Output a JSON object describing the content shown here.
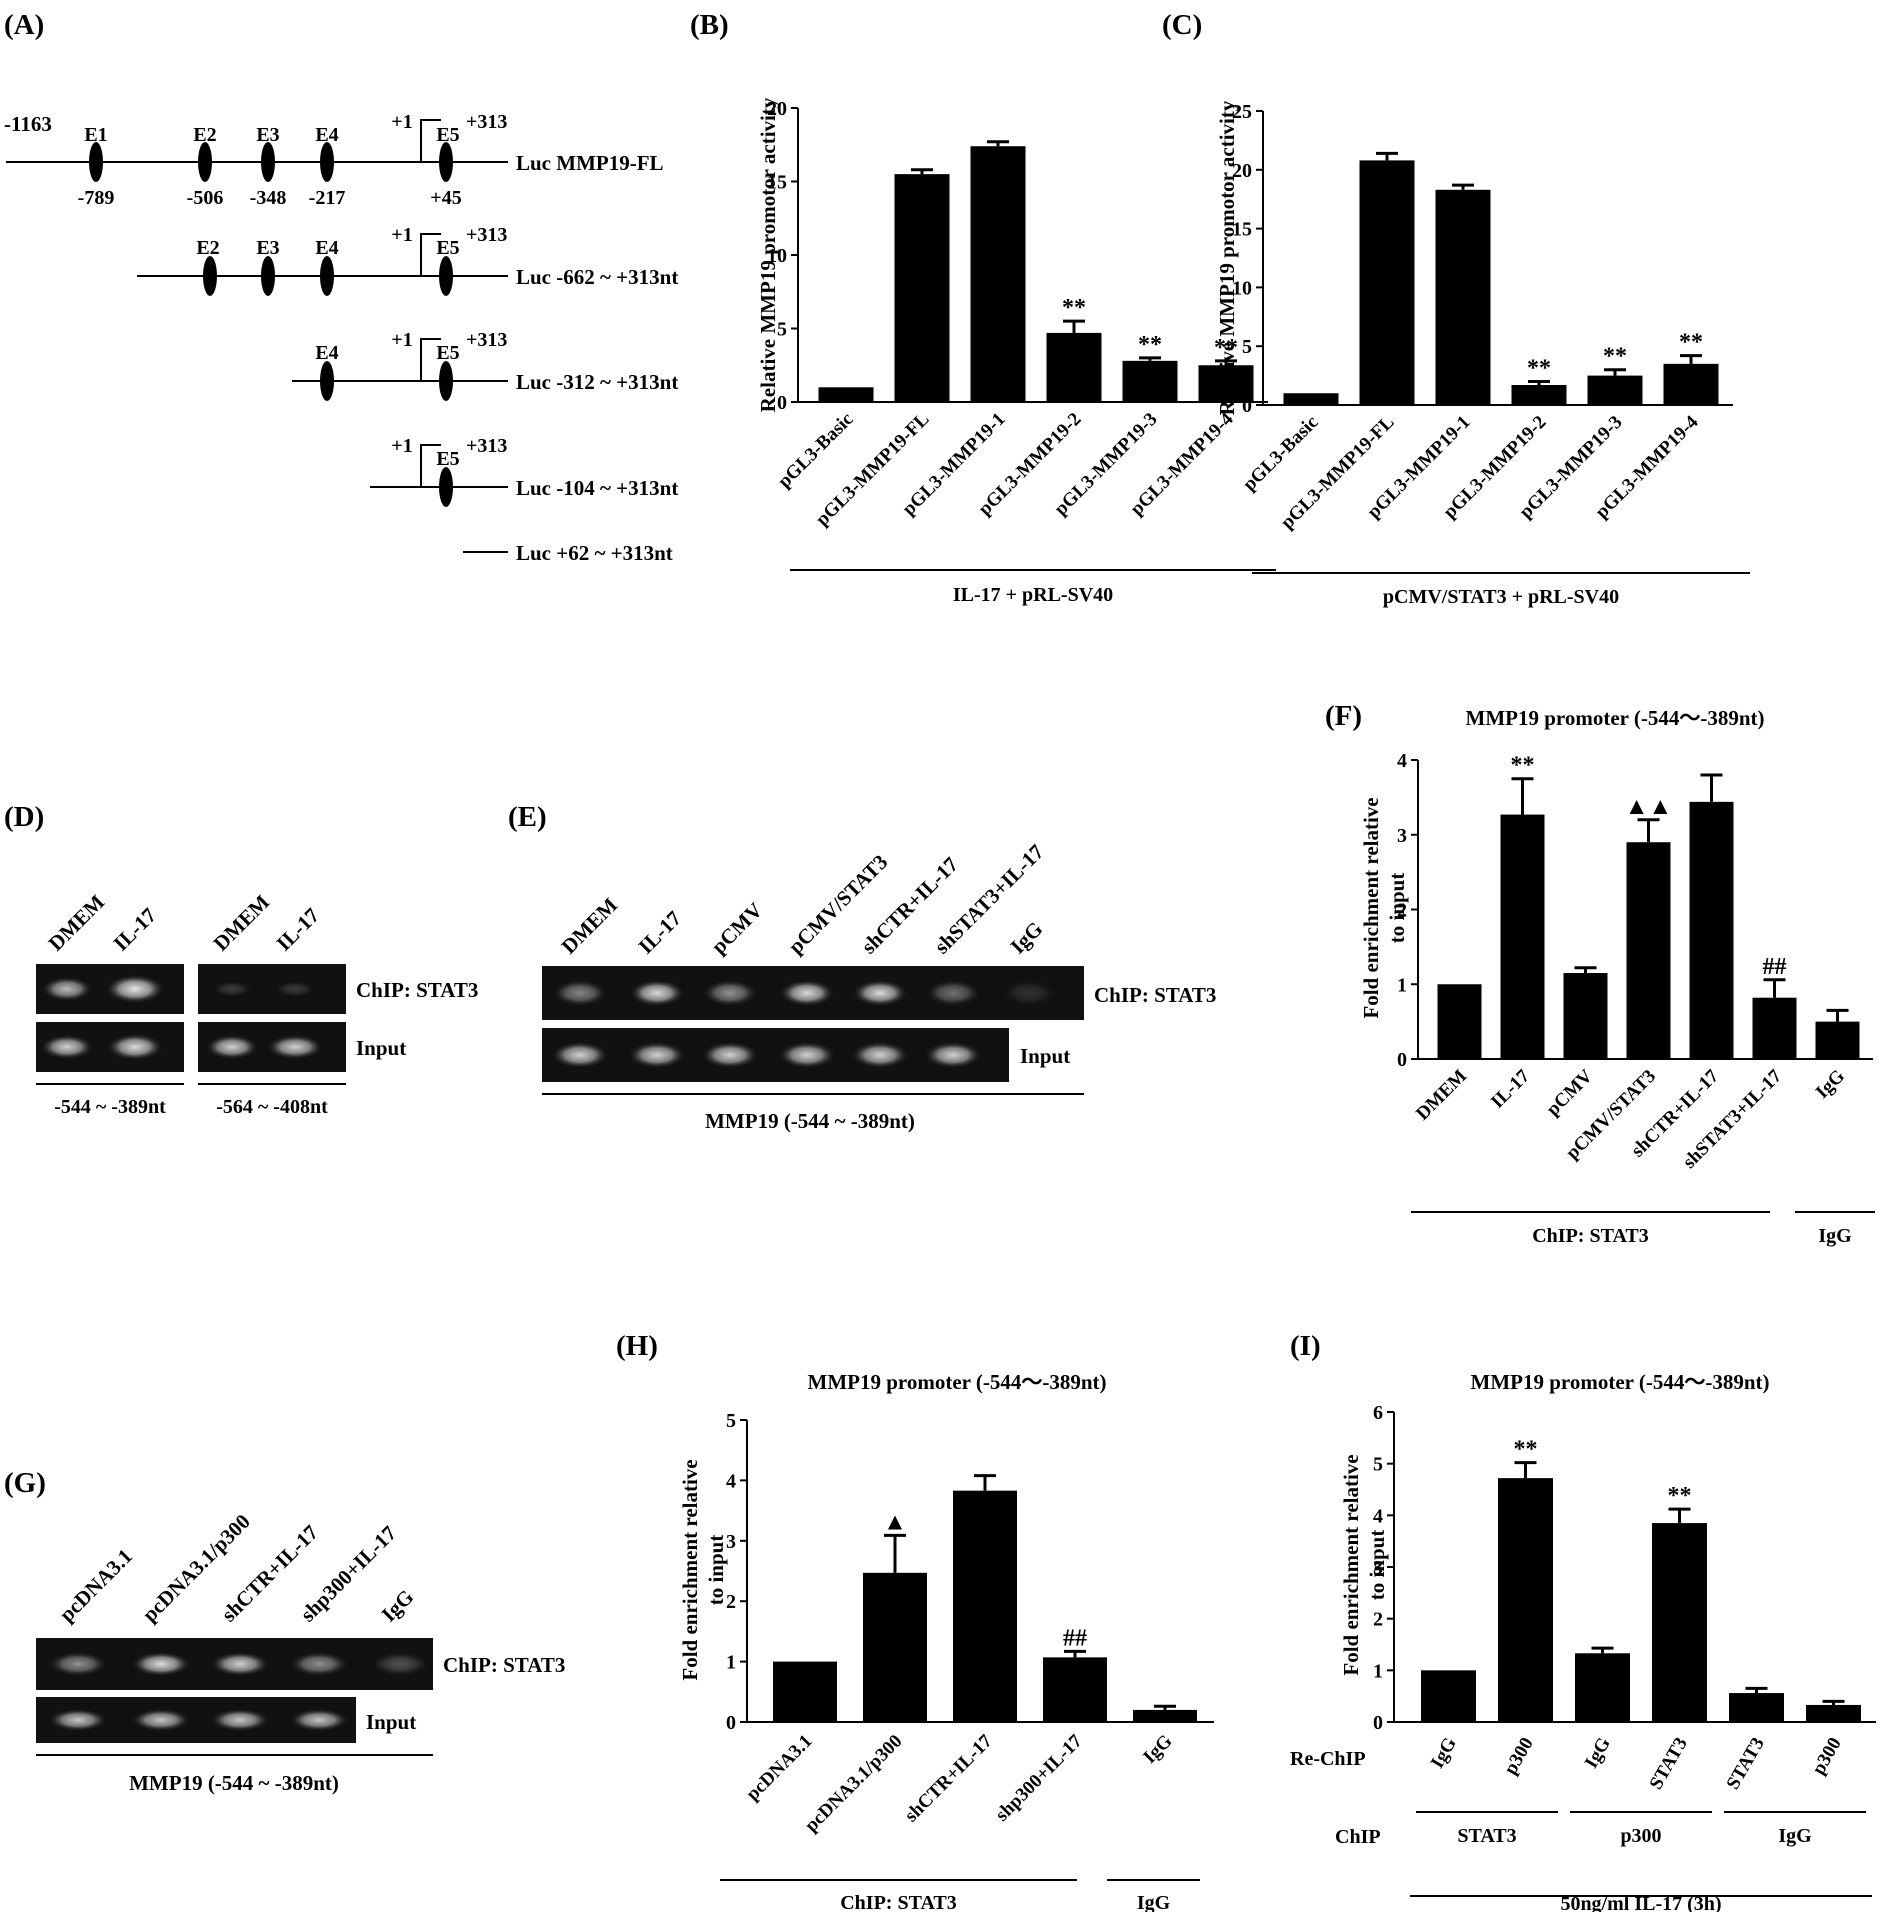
{
  "panelA": {
    "letter": "(A)",
    "fl_start": "-1163",
    "elements": [
      "E1",
      "E2",
      "E3",
      "E4",
      "E5"
    ],
    "fl_positions": [
      "-789",
      "-506",
      "-348",
      "-217",
      "+45"
    ],
    "tss": "+1",
    "end": "+313",
    "constructs": [
      "Luc MMP19-FL",
      "Luc -662 ~ +313nt",
      "Luc -312 ~ +313nt",
      "Luc -104 ~ +313nt",
      "Luc +62 ~ +313nt"
    ]
  },
  "chart_data": [
    {
      "id": "B",
      "type": "bar",
      "letter": "(B)",
      "ylabel": "Relative MMP19 promotor activity",
      "ylim": [
        0,
        20
      ],
      "yticks": [
        0,
        5,
        10,
        15,
        20
      ],
      "categories": [
        "pGL3-Basic",
        "pGL3-MMP19-FL",
        "pGL3-MMP19-1",
        "pGL3-MMP19-2",
        "pGL3-MMP19-3",
        "pGL3-MMP19-4"
      ],
      "values": [
        1.0,
        15.5,
        17.4,
        4.7,
        2.8,
        2.5
      ],
      "errors": [
        0,
        0.3,
        0.3,
        0.8,
        0.2,
        0.3
      ],
      "annotations": [
        "",
        "",
        "",
        "**",
        "**",
        "**"
      ],
      "groups": [
        {
          "label": "IL-17 + pRL-SV40",
          "from": 0,
          "to": 5
        }
      ]
    },
    {
      "id": "C",
      "type": "bar",
      "letter": "(C)",
      "ylabel": "Relative MMP19 promotor activity",
      "ylim": [
        0,
        25
      ],
      "yticks": [
        0,
        5,
        10,
        15,
        20,
        25
      ],
      "categories": [
        "pGL3-Basic",
        "pGL3-MMP19-FL",
        "pGL3-MMP19-1",
        "pGL3-MMP19-2",
        "pGL3-MMP19-3",
        "pGL3-MMP19-4"
      ],
      "values": [
        1.0,
        20.8,
        18.3,
        1.7,
        2.5,
        3.5
      ],
      "errors": [
        0,
        0.6,
        0.4,
        0.3,
        0.5,
        0.7
      ],
      "annotations": [
        "",
        "",
        "",
        "**",
        "**",
        "**"
      ],
      "groups": [
        {
          "label": "pCMV/STAT3 + pRL-SV40",
          "from": 0,
          "to": 5
        }
      ]
    },
    {
      "id": "F",
      "type": "bar",
      "letter": "(F)",
      "title": "MMP19 promoter (-544～-389nt)",
      "ylabel": "Fold enrichment relative to input",
      "ylim": [
        0,
        4
      ],
      "yticks": [
        0,
        1,
        2,
        3,
        4
      ],
      "categories": [
        "DMEM",
        "IL-17",
        "pCMV",
        "pCMV/STAT3",
        "shCTR+IL-17",
        "shSTAT3+IL-17",
        "IgG"
      ],
      "values": [
        1.0,
        3.27,
        1.15,
        2.9,
        3.44,
        0.82,
        0.5
      ],
      "errors": [
        0,
        0.48,
        0.07,
        0.3,
        0.36,
        0.24,
        0.15
      ],
      "annotations": [
        "",
        "**",
        "",
        "▲▲",
        "",
        "##",
        ""
      ],
      "groups": [
        {
          "label": "ChIP: STAT3",
          "from": 0,
          "to": 5
        },
        {
          "label": "IgG",
          "from": 6,
          "to": 6
        }
      ]
    },
    {
      "id": "H",
      "type": "bar",
      "letter": "(H)",
      "title": "MMP19 promoter (-544～-389nt)",
      "ylabel": "Fold enrichment relative to input",
      "ylim": [
        0,
        5
      ],
      "yticks": [
        0,
        1,
        2,
        3,
        4,
        5
      ],
      "categories": [
        "pcDNA3.1",
        "pcDNA3.1/p300",
        "shCTR+IL-17",
        "shp300+IL-17",
        "IgG"
      ],
      "values": [
        1.0,
        2.47,
        3.83,
        1.07,
        0.2
      ],
      "errors": [
        0,
        0.62,
        0.25,
        0.1,
        0.06
      ],
      "annotations": [
        "",
        "▲",
        "",
        "##",
        ""
      ],
      "groups": [
        {
          "label": "ChIP: STAT3",
          "from": 0,
          "to": 3
        },
        {
          "label": "IgG",
          "from": 4,
          "to": 4
        }
      ]
    },
    {
      "id": "I",
      "type": "bar",
      "letter": "(I)",
      "title": "MMP19 promoter (-544～-389nt)",
      "ylabel": "Fold enrichment relative to input",
      "ylim": [
        0,
        6
      ],
      "yticks": [
        0,
        1,
        2,
        3,
        4,
        5,
        6
      ],
      "categories": [
        "IgG",
        "p300",
        "IgG",
        "STAT3",
        "STAT3",
        "p300"
      ],
      "values": [
        1.0,
        4.72,
        1.33,
        3.85,
        0.56,
        0.33
      ],
      "errors": [
        0,
        0.3,
        0.1,
        0.27,
        0.09,
        0.07
      ],
      "annotations": [
        "",
        "**",
        "",
        "**",
        "",
        ""
      ],
      "row_labels": {
        "rechip": "Re-ChIP",
        "chip": "ChIP"
      },
      "chip_groups": [
        {
          "label": "STAT3",
          "from": 0,
          "to": 1
        },
        {
          "label": "p300",
          "from": 2,
          "to": 3
        },
        {
          "label": "IgG",
          "from": 4,
          "to": 5
        }
      ],
      "condition": "50ng/ml IL-17 (3h)"
    }
  ],
  "panelD": {
    "letter": "(D)",
    "lanes": [
      "DMEM",
      "IL-17",
      "DMEM",
      "IL-17"
    ],
    "rows": [
      "ChIP: STAT3",
      "Input"
    ],
    "regions": [
      "-544 ~ -389nt",
      "-564 ~ -408nt"
    ]
  },
  "panelE": {
    "letter": "(E)",
    "lanes": [
      "DMEM",
      "IL-17",
      "pCMV",
      "pCMV/STAT3",
      "shCTR+IL-17",
      "shSTAT3+IL-17",
      "IgG"
    ],
    "rows": [
      "ChIP: STAT3",
      "Input"
    ],
    "region": "MMP19 (-544 ~ -389nt)"
  },
  "panelG": {
    "letter": "(G)",
    "lanes": [
      "pcDNA3.1",
      "pcDNA3.1/p300",
      "shCTR+IL-17",
      "shp300+IL-17",
      "IgG"
    ],
    "rows": [
      "ChIP: STAT3",
      "Input"
    ],
    "region": "MMP19 (-544 ~ -389nt)"
  }
}
